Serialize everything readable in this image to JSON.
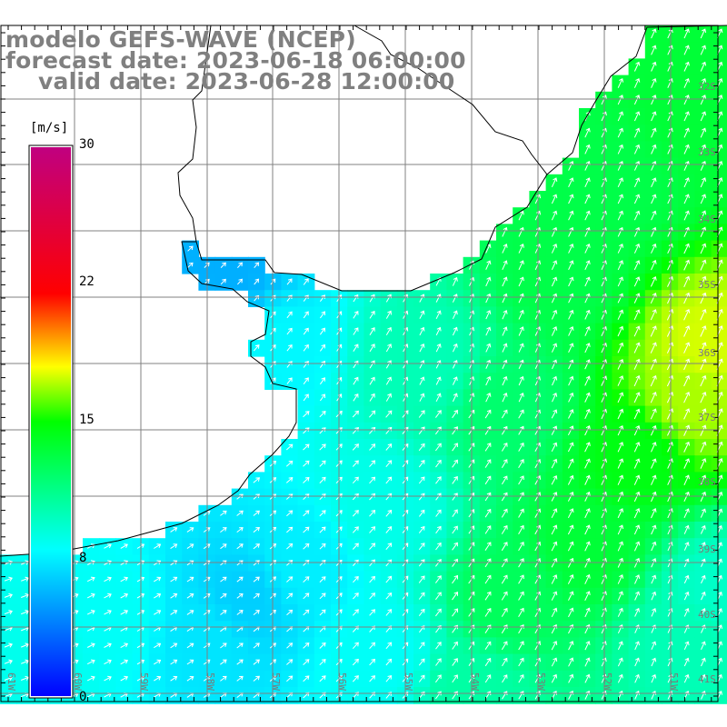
{
  "title": {
    "line1": "modelo GEFS-WAVE (NCEP)",
    "line2": "forecast date: 2023-06-18 06:00:00",
    "line3": "valid date: 2023-06-28 12:00:00"
  },
  "colorbar": {
    "unit": "[m/s]",
    "labels": [
      "30",
      "22",
      "15",
      "8",
      "0"
    ],
    "range": [
      0,
      30
    ],
    "stops": [
      {
        "value": 0,
        "color": "#0000ff"
      },
      {
        "value": 8,
        "color": "#00ffff"
      },
      {
        "value": 15,
        "color": "#00ff00"
      },
      {
        "value": 18,
        "color": "#ffff00"
      },
      {
        "value": 22,
        "color": "#ff0000"
      },
      {
        "value": 30,
        "color": "#c00080"
      }
    ]
  },
  "latitudes": [
    "32S",
    "33S",
    "34S",
    "35S",
    "36S",
    "37S",
    "38S",
    "39S",
    "40S",
    "41S"
  ],
  "longitudes": [
    "61W",
    "60W",
    "59W",
    "58W",
    "57W",
    "56W",
    "55W",
    "54W",
    "53W",
    "52W",
    "51W"
  ],
  "colors": {
    "land": "#ffffff",
    "grid": "#808080",
    "coast": "#000000",
    "arrow": "#ffffff"
  }
}
